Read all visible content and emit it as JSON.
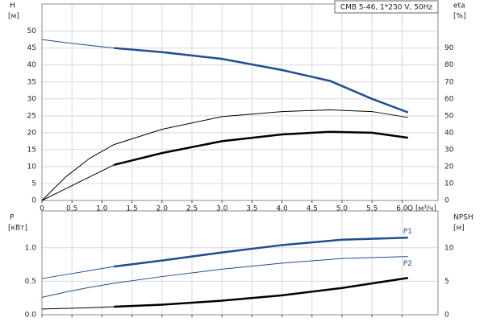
{
  "chart_data": [
    {
      "type": "line",
      "title": "CMB 5-46, 1*230 V, 50Hz",
      "ylabel": "H",
      "ylabel_unit": "[м]",
      "y2label": "eta",
      "y2label_unit": "[%]",
      "xlabel": "Q [м³/ч]",
      "x": [
        0,
        0.4,
        0.8,
        1.2,
        2,
        3,
        4,
        4.8,
        5.5,
        6.1
      ],
      "xlim": [
        0,
        6.6
      ],
      "xticks": [
        0,
        {
          "value": 0.5,
          "label": "0,5"
        },
        {
          "value": 1,
          "label": "1,0"
        },
        {
          "value": 1.5,
          "label": "1,5"
        },
        {
          "value": 2,
          "label": "2,0"
        },
        {
          "value": 2.5,
          "label": "2,5"
        },
        {
          "value": 3,
          "label": "3,0"
        },
        {
          "value": 3.5,
          "label": "3,5"
        },
        {
          "value": 4,
          "label": "4,0"
        },
        {
          "value": 4.5,
          "label": "4,5"
        },
        {
          "value": 5,
          "label": "5,0"
        },
        {
          "value": 5.5,
          "label": "5,5"
        },
        {
          "value": 6,
          "label": "6,0"
        }
      ],
      "show_xtick_labels": true,
      "ylim": [
        0,
        58
      ],
      "yticks": [
        0,
        5,
        10,
        15,
        20,
        25,
        30,
        35,
        40,
        45,
        50
      ],
      "y2lim": [
        0,
        116
      ],
      "y2ticks": [
        0,
        10,
        20,
        30,
        40,
        50,
        60,
        70,
        80,
        90
      ],
      "grid": true,
      "series": [
        {
          "color": "#1f4e8c",
          "width": 1,
          "values": [
            47.5,
            46.6,
            45.8,
            45,
            null,
            null,
            null,
            null,
            null,
            null
          ]
        },
        {
          "color": "#1f4e8c",
          "width": 2.5,
          "values": [
            null,
            null,
            null,
            45,
            43.8,
            41.8,
            38.5,
            35.3,
            30,
            26
          ]
        },
        {
          "color": "#000000",
          "width": 1,
          "axis": "y2",
          "values": [
            0,
            14,
            25,
            33,
            42,
            49.5,
            52.5,
            53.5,
            52.5,
            49
          ]
        },
        {
          "color": "#000000",
          "width": 1,
          "axis": "y2",
          "values": [
            0,
            7,
            14,
            21,
            null,
            null,
            null,
            null,
            null,
            null
          ]
        },
        {
          "color": "#000000",
          "width": 2.5,
          "axis": "y2",
          "values": [
            null,
            null,
            null,
            21,
            28,
            35,
            39,
            40.5,
            40,
            37
          ]
        }
      ]
    },
    {
      "type": "line",
      "ylabel": "P",
      "ylabel_unit": "[кВт]",
      "y2label": "NPSH",
      "y2label_unit": "[м]",
      "x": [
        0,
        0.4,
        0.8,
        1.2,
        2,
        3,
        4,
        5,
        6.1
      ],
      "xlim": [
        0,
        6.6
      ],
      "xticks": [
        0,
        0.5,
        1,
        1.5,
        2,
        2.5,
        3,
        3.5,
        4,
        4.5,
        5,
        5.5,
        6
      ],
      "show_xtick_labels": false,
      "ylim": [
        0,
        1.55
      ],
      "yticks": [
        {
          "value": 0,
          "label": "0.0"
        },
        0.5,
        {
          "value": 1,
          "label": "1.0"
        }
      ],
      "y2lim": [
        0,
        15.5
      ],
      "y2ticks": [
        0,
        5,
        10
      ],
      "grid": true,
      "series": [
        {
          "color": "#1f4e8c",
          "width": 1,
          "values": [
            0.54,
            0.6,
            0.66,
            0.72,
            null,
            null,
            null,
            null,
            null
          ]
        },
        {
          "name": "P1",
          "color": "#1f4e8c",
          "width": 2.5,
          "values": [
            null,
            null,
            null,
            0.72,
            0.81,
            0.93,
            1.04,
            1.12,
            1.15
          ]
        },
        {
          "name": "P2",
          "color": "#1f4e8c",
          "width": 1,
          "values": [
            0.26,
            0.34,
            0.41,
            0.47,
            0.57,
            0.68,
            0.77,
            0.84,
            0.87
          ]
        },
        {
          "color": "#000000",
          "width": 1,
          "axis": "y2",
          "values": [
            0.85,
            0.95,
            1.05,
            1.2,
            null,
            null,
            null,
            null,
            null
          ]
        },
        {
          "color": "#000000",
          "width": 2.5,
          "axis": "y2",
          "values": [
            null,
            null,
            null,
            1.2,
            1.5,
            2.1,
            2.9,
            4.0,
            5.5
          ]
        }
      ]
    }
  ]
}
